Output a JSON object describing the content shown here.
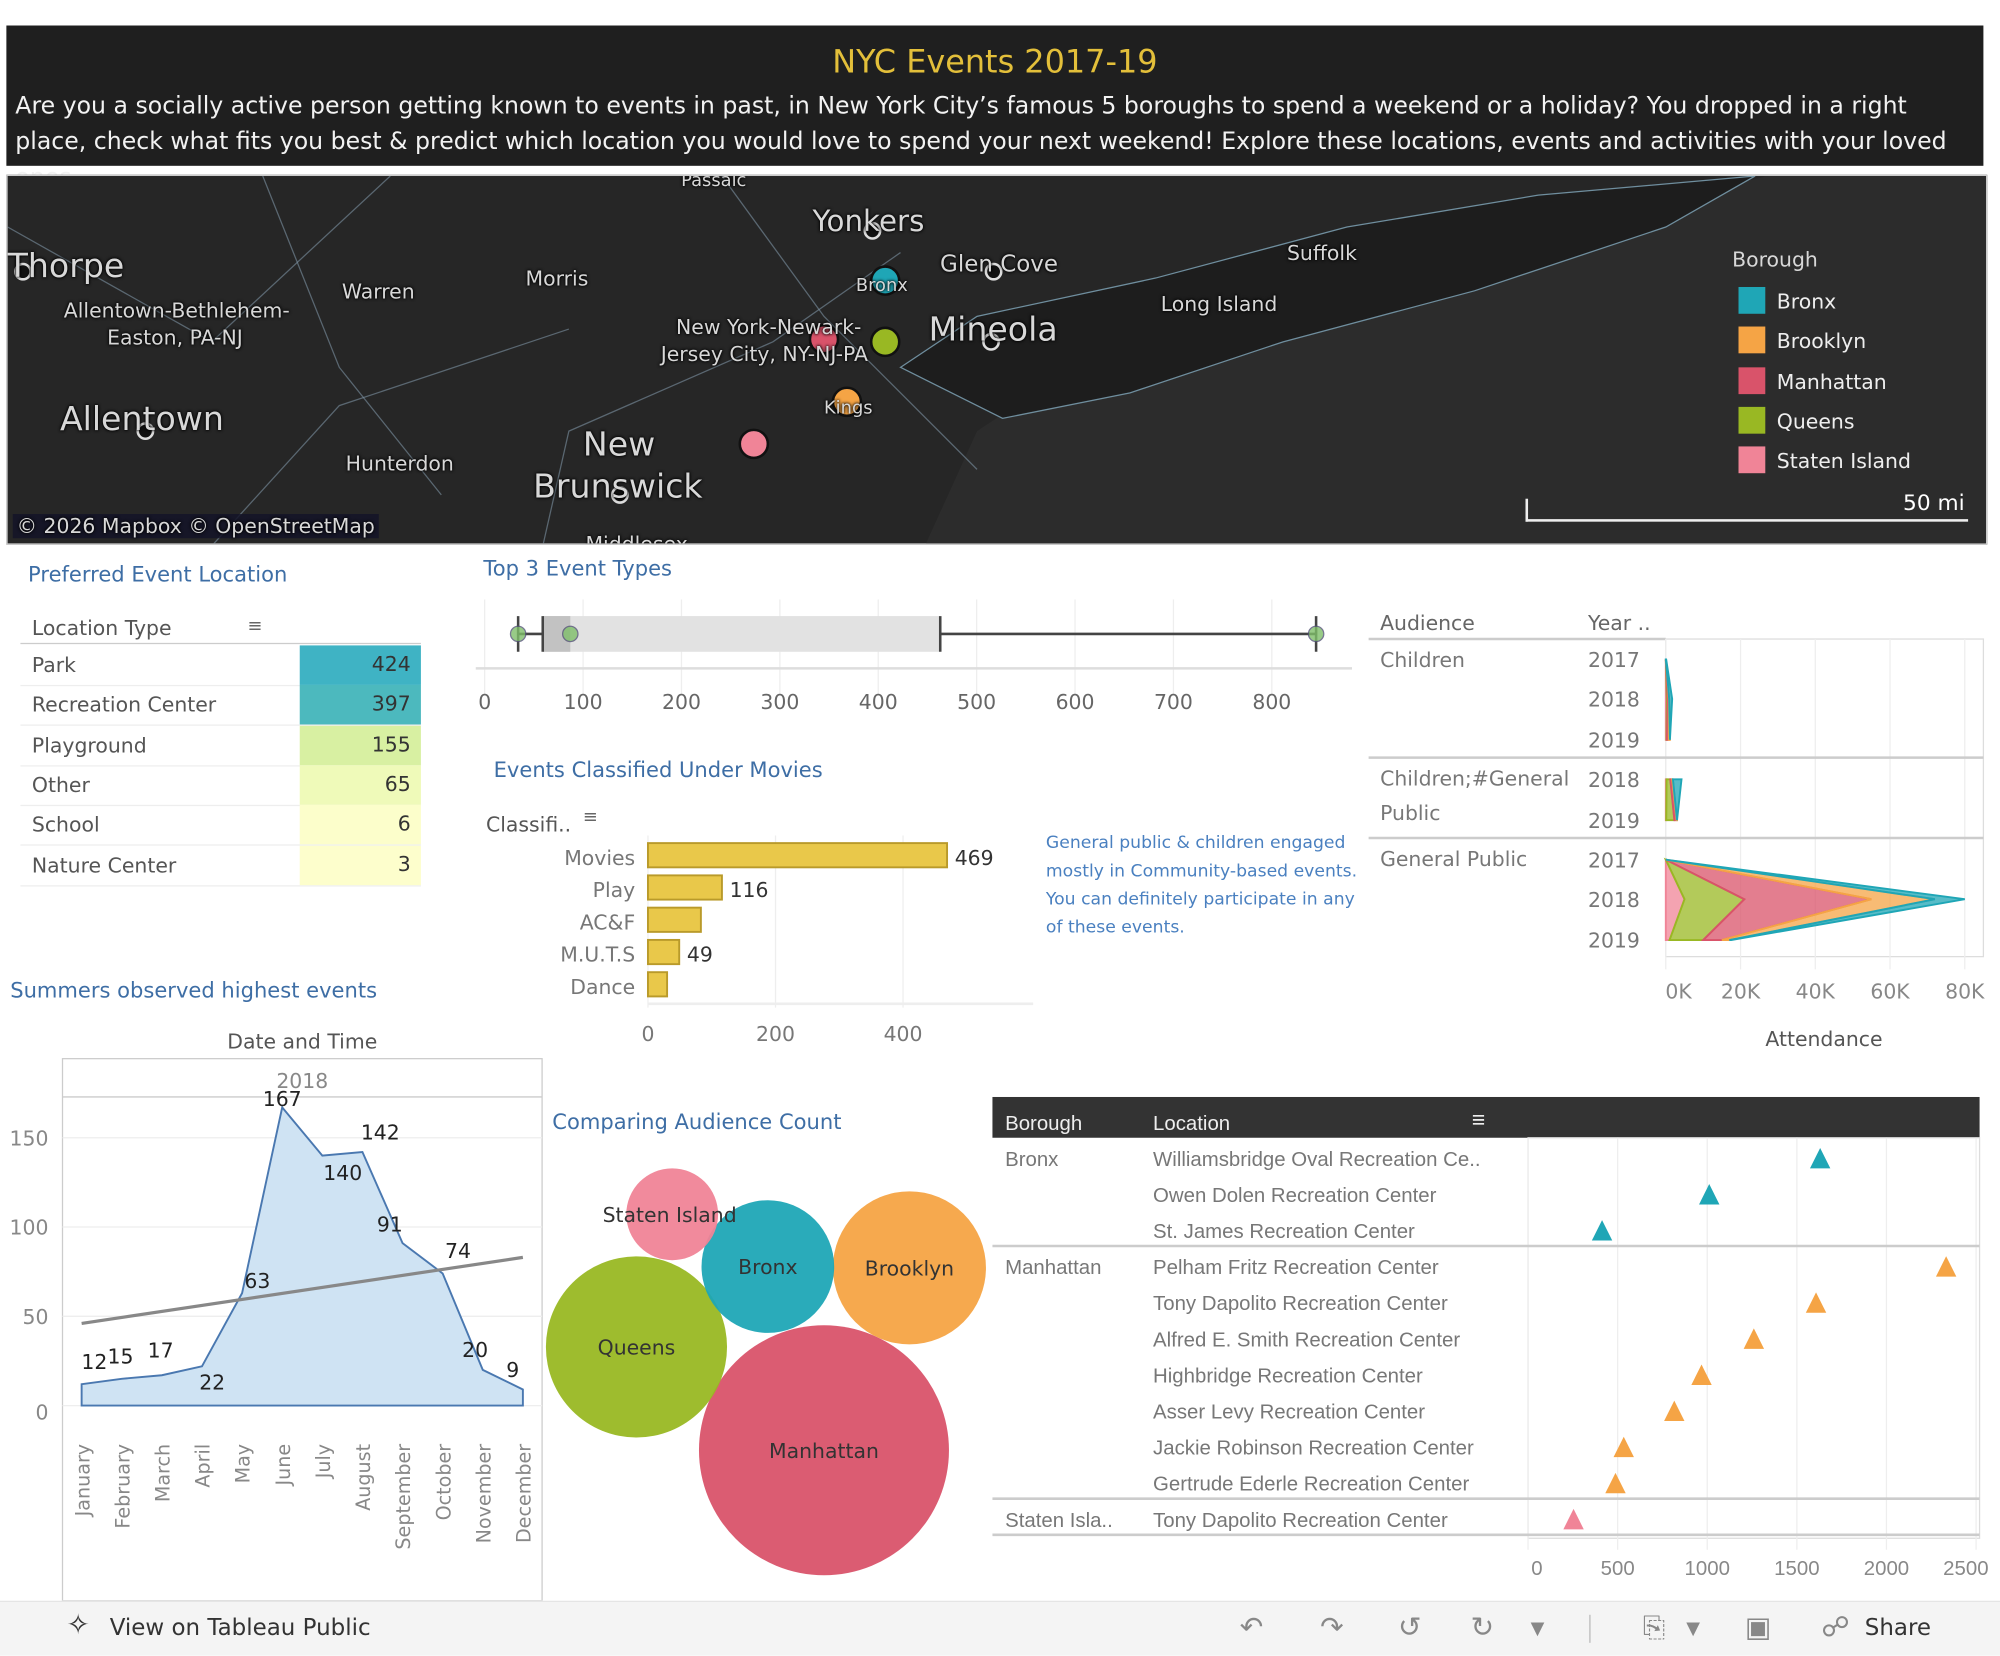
{
  "header": {
    "title": "NYC Events 2017-19",
    "description": "Are you a socially active person getting known to events in past, in New York City’s famous 5 boroughs to spend a weekend or a holiday? You dropped in a right place, check what fits you best & predict which location you would love to spend your next weekend! Explore these locations, events and activities with your loved ones."
  },
  "colors": {
    "Bronx": "#1fa6b6",
    "Brooklyn": "#f5a445",
    "Manhattan": "#d9536a",
    "Queens": "#99b823",
    "Staten Island": "#f08497",
    "header_bg": "#1f1f1f",
    "title_gold": "#e3bf3a",
    "accent_blue": "#3e6ea5",
    "bar_yellow": "#e9c84a"
  },
  "map": {
    "place_labels": [
      "Thorpe",
      "Allentown-Bethlehem-",
      "Easton, PA-NJ",
      "Warren",
      "Morris",
      "Yonkers",
      "Glen Cove",
      "Suffolk",
      "Long Island",
      "Mineola",
      "New York-Newark-",
      "Jersey City, NY-NJ-PA",
      "Bronx",
      "Kings",
      "Allentown",
      "Hunterdon",
      "New",
      "Brunswick",
      "Middlesex",
      "Passaic"
    ],
    "attribution": "© 2026 Mapbox  © OpenStreetMap",
    "scale": "50 mi",
    "legend_title": "Borough",
    "legend": [
      "Bronx",
      "Brooklyn",
      "Manhattan",
      "Queens",
      "Staten Island"
    ]
  },
  "preferred": {
    "title": "Preferred Event Location",
    "header": "Location Type",
    "rows": [
      {
        "label": "Park",
        "value": "424",
        "color": "#3fb3c4"
      },
      {
        "label": "Recreation Center",
        "value": "397",
        "color": "#4cb9be"
      },
      {
        "label": "Playground",
        "value": "155",
        "color": "#d8f0a2"
      },
      {
        "label": "Other",
        "value": "65",
        "color": "#effab9"
      },
      {
        "label": "School",
        "value": "6",
        "color": "#fcfecb"
      },
      {
        "label": "Nature Center",
        "value": "3",
        "color": "#fdfecc"
      }
    ]
  },
  "top3": {
    "title": "Top 3  Event Types",
    "chart_data": {
      "type": "boxplot",
      "ticks": [
        0,
        100,
        200,
        300,
        400,
        500,
        600,
        700,
        800
      ],
      "xlim": [
        0,
        850
      ],
      "whisker_low": 34,
      "q1": 59,
      "median": 87,
      "q3": 463,
      "whisker_high": 845,
      "points": [
        34,
        87,
        845
      ]
    }
  },
  "movies": {
    "title": "Events Classified Under Movies",
    "header": "Classifi..",
    "note": "General public & children engaged mostly in Community-based events. You can definitely participate in any of these events.",
    "chart_data": {
      "type": "bar",
      "orientation": "horizontal",
      "categories": [
        "Movies",
        "Play",
        "AC&F",
        "M.U.T.S",
        "Dance"
      ],
      "values": [
        469,
        116,
        83,
        49,
        30
      ],
      "labels": [
        "469",
        "116",
        "",
        "49",
        ""
      ],
      "ticks": [
        0,
        200,
        400
      ],
      "xlim": [
        0,
        570
      ]
    }
  },
  "audience": {
    "col1": "Audience",
    "col2": "Year ..",
    "xlabel": "Attendance",
    "ticks": [
      "0K",
      "20K",
      "40K",
      "60K",
      "80K"
    ],
    "groups": [
      {
        "name": "Children",
        "years": [
          "2017",
          "2018",
          "2019"
        ]
      },
      {
        "name": "Children;#General Public",
        "years": [
          "2018",
          "2019"
        ]
      },
      {
        "name": "General Public",
        "years": [
          "2017",
          "2018",
          "2019"
        ]
      }
    ],
    "chart_data": {
      "type": "area",
      "stacked": true,
      "unit": "thousands",
      "xlim": [
        0,
        82
      ],
      "series_order": [
        "Staten Island",
        "Queens",
        "Manhattan",
        "Brooklyn",
        "Bronx"
      ],
      "values": {
        "Children": {
          "2017": [
            0,
            0,
            0,
            0,
            0.1
          ],
          "2018": [
            0.3,
            0.2,
            0.3,
            0.1,
            0.8
          ],
          "2019": [
            0.2,
            0.1,
            0.5,
            0.3,
            0
          ]
        },
        "Children;#General Public": {
          "2018": [
            0.2,
            1,
            0.5,
            0.2,
            2.3
          ],
          "2019": [
            0.1,
            2.2,
            0.6,
            0.1,
            0
          ]
        },
        "General Public": {
          "2017": [
            0,
            0,
            0,
            0,
            0
          ],
          "2018": [
            5,
            16,
            34,
            17,
            8
          ],
          "2019": [
            1,
            9,
            5,
            2,
            0.5
          ]
        }
      }
    }
  },
  "summer": {
    "title": "Summers observed highest events",
    "axis_title": "Date and Time",
    "year": "2018",
    "chart_data": {
      "type": "area",
      "categories": [
        "January",
        "February",
        "March",
        "April",
        "May",
        "June",
        "July",
        "August",
        "September",
        "October",
        "November",
        "December"
      ],
      "values": [
        12,
        15,
        17,
        22,
        63,
        167,
        140,
        142,
        91,
        74,
        20,
        9
      ],
      "yticks": [
        0,
        50,
        100,
        150
      ],
      "ylim": [
        0,
        180
      ],
      "trend": [
        46,
        83
      ]
    }
  },
  "bubbles": {
    "title": "Comparing Audience Count",
    "chart_data": {
      "type": "bubble",
      "items": [
        {
          "name": "Manhattan",
          "size": 98
        },
        {
          "name": "Queens",
          "size": 71
        },
        {
          "name": "Brooklyn",
          "size": 60
        },
        {
          "name": "Bronx",
          "size": 52
        },
        {
          "name": "Staten Island",
          "size": 36
        }
      ]
    }
  },
  "locations": {
    "col1": "Borough",
    "col2": "Location",
    "ticks": [
      0,
      500,
      1000,
      1500,
      2000,
      2500
    ],
    "chart_data": {
      "type": "scatter",
      "xlim": [
        0,
        2500
      ],
      "groups": [
        {
          "borough": "Bronx",
          "color_key": "Bronx",
          "rows": [
            {
              "name": "Williamsbridge Oval Recreation Ce..",
              "value": 1630
            },
            {
              "name": "Owen Dolen Recreation Center",
              "value": 1011
            },
            {
              "name": "St. James Recreation Center",
              "value": 413
            }
          ]
        },
        {
          "borough": "Manhattan",
          "color_key": "Brooklyn",
          "rows": [
            {
              "name": "Pelham Fritz Recreation Center",
              "value": 2333
            },
            {
              "name": "Tony Dapolito Recreation Center",
              "value": 1607
            },
            {
              "name": "Alfred E. Smith Recreation Center",
              "value": 1260
            },
            {
              "name": "Highbridge Recreation Center",
              "value": 968
            },
            {
              "name": "Asser Levy Recreation Center",
              "value": 816
            },
            {
              "name": "Jackie Robinson Recreation Center",
              "value": 534
            },
            {
              "name": "Gertrude Ederle Recreation Center",
              "value": 488
            }
          ]
        },
        {
          "borough": "Staten Isla..",
          "color_key": "Staten Island",
          "rows": [
            {
              "name": "Tony Dapolito Recreation Center",
              "value": 254
            }
          ]
        }
      ]
    }
  },
  "footer": {
    "view_label": "View on Tableau Public",
    "share_label": "Share"
  }
}
